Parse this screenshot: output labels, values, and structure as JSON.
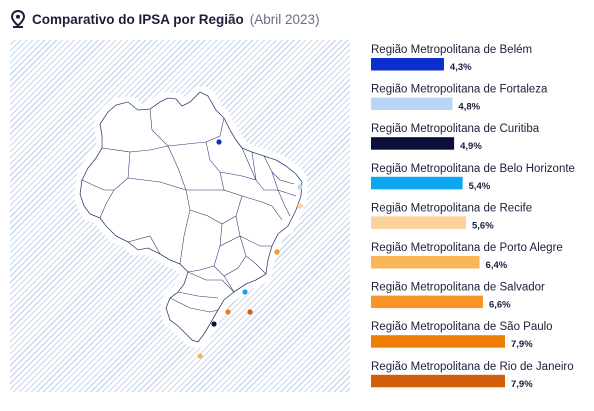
{
  "header": {
    "title": "Comparativo do IPSA por Região",
    "subtitle": "(Abril 2023)",
    "icon": "map-pin-icon"
  },
  "chart_data": {
    "type": "bar",
    "orientation": "horizontal",
    "title": "Comparativo do IPSA por Região",
    "subtitle": "(Abril 2023)",
    "categories": [
      "Região Metropolitana de Belém",
      "Região Metropolitana de Fortaleza",
      "Região Metropolitana de Curitiba",
      "Região Metropolitana de Belo Horizonte",
      "Região Metropolitana de Recife",
      "Região Metropolitana de Porto Alegre",
      "Região Metropolitana de Salvador",
      "Região Metropolitana de São Paulo",
      "Região Metropolitana de Rio de Janeiro"
    ],
    "values": [
      4.3,
      4.8,
      4.9,
      5.4,
      5.6,
      6.4,
      6.6,
      7.9,
      7.9
    ],
    "value_labels": [
      "4,3%",
      "4,8%",
      "4,9%",
      "5,4%",
      "5,6%",
      "6,4%",
      "6,6%",
      "7,9%",
      "7,9%"
    ],
    "colors": [
      "#0c2ecf",
      "#b8d4f7",
      "#0b0f3a",
      "#0aa6f0",
      "#fbd29a",
      "#f9b556",
      "#f89428",
      "#ef7d06",
      "#d25f0a"
    ],
    "xlim": [
      0,
      7.9
    ],
    "xlabel": "",
    "ylabel": "",
    "grid": false,
    "legend": "none"
  },
  "map": {
    "icon": "brazil-map-icon",
    "markers": [
      {
        "region": "Belém",
        "color": "#0c2ecf"
      },
      {
        "region": "Fortaleza",
        "color": "#b8d4f7"
      },
      {
        "region": "Recife",
        "color": "#fbd29a"
      },
      {
        "region": "Salvador",
        "color": "#f89428"
      },
      {
        "region": "Belo Horizonte",
        "color": "#0aa6f0"
      },
      {
        "region": "Rio de Janeiro",
        "color": "#d25f0a"
      },
      {
        "region": "São Paulo",
        "color": "#ef7d06"
      },
      {
        "region": "Curitiba",
        "color": "#0b0f3a"
      },
      {
        "region": "Porto Alegre",
        "color": "#f9b556"
      }
    ]
  }
}
